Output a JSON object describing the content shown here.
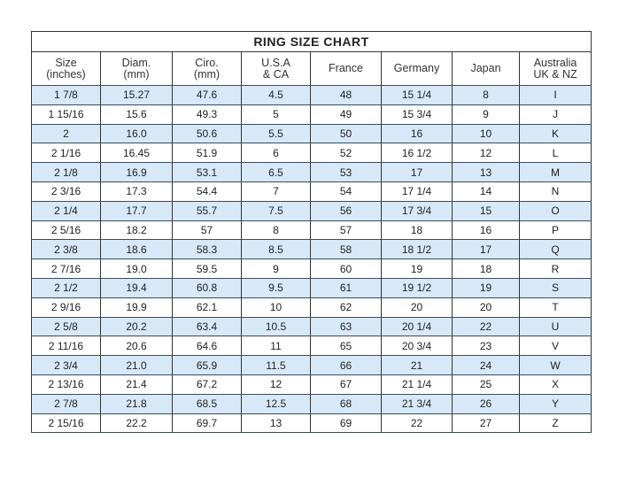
{
  "title": "RING SIZE CHART",
  "columns": [
    [
      "Size",
      "(inches)"
    ],
    [
      "Diam.",
      "(mm)"
    ],
    [
      "Ciro.",
      "(mm)"
    ],
    [
      "U.S.A",
      "& CA"
    ],
    [
      "France",
      ""
    ],
    [
      "Germany",
      ""
    ],
    [
      "Japan",
      ""
    ],
    [
      "Australia",
      "UK & NZ"
    ]
  ],
  "rows": [
    [
      "1 7/8",
      "15.27",
      "47.6",
      "4.5",
      "48",
      "15 1/4",
      "8",
      "I"
    ],
    [
      "1 15/16",
      "15.6",
      "49.3",
      "5",
      "49",
      "15 3/4",
      "9",
      "J"
    ],
    [
      "2",
      "16.0",
      "50.6",
      "5.5",
      "50",
      "16",
      "10",
      "K"
    ],
    [
      "2 1/16",
      "16.45",
      "51.9",
      "6",
      "52",
      "16 1/2",
      "12",
      "L"
    ],
    [
      "2 1/8",
      "16.9",
      "53.1",
      "6.5",
      "53",
      "17",
      "13",
      "M"
    ],
    [
      "2 3/16",
      "17.3",
      "54.4",
      "7",
      "54",
      "17 1/4",
      "14",
      "N"
    ],
    [
      "2 1/4",
      "17.7",
      "55.7",
      "7.5",
      "56",
      "17 3/4",
      "15",
      "O"
    ],
    [
      "2 5/16",
      "18.2",
      "57",
      "8",
      "57",
      "18",
      "16",
      "P"
    ],
    [
      "2 3/8",
      "18.6",
      "58.3",
      "8.5",
      "58",
      "18 1/2",
      "17",
      "Q"
    ],
    [
      "2 7/16",
      "19.0",
      "59.5",
      "9",
      "60",
      "19",
      "18",
      "R"
    ],
    [
      "2 1/2",
      "19.4",
      "60.8",
      "9.5",
      "61",
      "19 1/2",
      "19",
      "S"
    ],
    [
      "2 9/16",
      "19.9",
      "62.1",
      "10",
      "62",
      "20",
      "20",
      "T"
    ],
    [
      "2 5/8",
      "20.2",
      "63.4",
      "10.5",
      "63",
      "20 1/4",
      "22",
      "U"
    ],
    [
      "2 11/16",
      "20.6",
      "64.6",
      "11",
      "65",
      "20 3/4",
      "23",
      "V"
    ],
    [
      "2 3/4",
      "21.0",
      "65.9",
      "11.5",
      "66",
      "21",
      "24",
      "W"
    ],
    [
      "2 13/16",
      "21.4",
      "67.2",
      "12",
      "67",
      "21 1/4",
      "25",
      "X"
    ],
    [
      "2 7/8",
      "21.8",
      "68.5",
      "12.5",
      "68",
      "21 3/4",
      "26",
      "Y"
    ],
    [
      "2 15/16",
      "22.2",
      "69.7",
      "13",
      "69",
      "22",
      "27",
      "Z"
    ]
  ],
  "colors": {
    "stripe": "#d7e9f8",
    "border": "#333333"
  }
}
